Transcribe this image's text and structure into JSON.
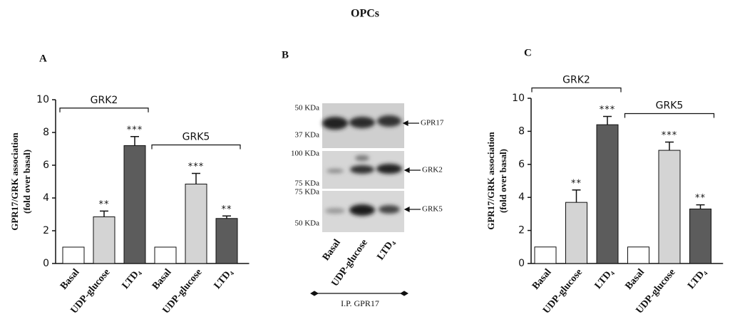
{
  "title": "OPCs",
  "chart_data": [
    {
      "type": "bar",
      "panel": "A",
      "ylabel": [
        "GPR17/GRK association",
        "(fold over basal)"
      ],
      "categories": [
        "Basal",
        "UDP-glucose",
        "LTD₄",
        "Basal",
        "UDP-glucose",
        "LTD₄"
      ],
      "values": [
        1,
        2.85,
        7.2,
        1,
        4.85,
        2.75
      ],
      "errors": [
        0,
        0.35,
        0.55,
        0,
        0.65,
        0.15
      ],
      "annotations": [
        null,
        "**",
        "***",
        null,
        "***",
        "**"
      ],
      "colors": [
        "#ffffff",
        "#d4d4d4",
        "#5c5c5c",
        "#ffffff",
        "#d4d4d4",
        "#5c5c5c"
      ],
      "groups": [
        "GRK2",
        "GRK5"
      ],
      "ylim": [
        0,
        10
      ],
      "yticks": [
        0,
        2,
        4,
        6,
        8,
        10
      ]
    },
    {
      "type": "bar",
      "panel": "C",
      "ylabel": [
        "GPR17/GRK association",
        "(fold over basal)"
      ],
      "categories": [
        "Basal",
        "UDP-glucose",
        "LTD₄",
        "Basal",
        "UDP-glucose",
        "LTD₄"
      ],
      "values": [
        1,
        3.7,
        8.4,
        1,
        6.85,
        3.3
      ],
      "errors": [
        0,
        0.75,
        0.5,
        0,
        0.5,
        0.25
      ],
      "annotations": [
        null,
        "**",
        "***",
        null,
        "***",
        "**"
      ],
      "colors": [
        "#ffffff",
        "#d4d4d4",
        "#5c5c5c",
        "#ffffff",
        "#d4d4d4",
        "#5c5c5c"
      ],
      "groups": [
        "GRK2",
        "GRK5"
      ],
      "ylim": [
        0,
        10
      ],
      "yticks": [
        0,
        2,
        4,
        6,
        8,
        10
      ]
    }
  ],
  "blot": {
    "panel": "B",
    "markers": [
      "50 KDa",
      "37 KDa",
      "100 KDa",
      "75 KDa",
      "75 KDa",
      "50 KDa"
    ],
    "proteins": [
      "GPR17",
      "GRK2",
      "GRK5"
    ],
    "lanes": [
      "Basal",
      "UDP-glucose",
      "LTD₄"
    ],
    "ip": "I.P. GPR17"
  }
}
